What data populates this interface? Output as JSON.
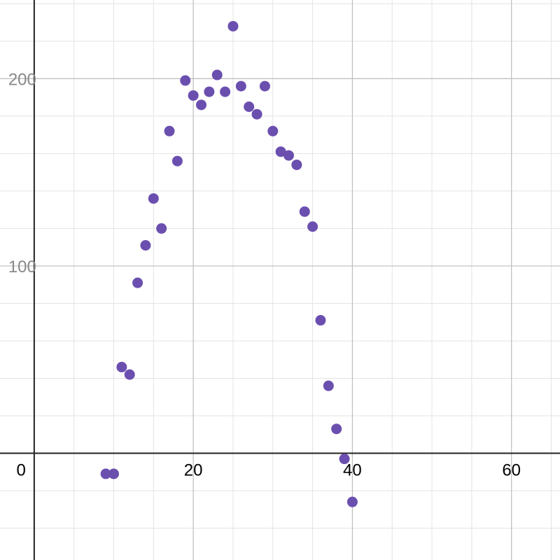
{
  "chart_data": {
    "type": "scatter",
    "title": "",
    "xlabel": "",
    "ylabel": "",
    "xlim": [
      -4.3,
      66.1
    ],
    "ylim": [
      -57,
      242
    ],
    "grid": true,
    "x_major_ticks": [
      0,
      20,
      40,
      60
    ],
    "x_minor_step": 5,
    "y_major_ticks": [
      100,
      200
    ],
    "y_minor_step": 20,
    "x_tick_labels": [
      "0",
      "20",
      "40",
      "60"
    ],
    "y_tick_labels": [
      "100",
      "200"
    ],
    "point_color": "#6B4FAF",
    "series": [
      {
        "points": [
          {
            "x": 9,
            "y": -11
          },
          {
            "x": 10,
            "y": -11
          },
          {
            "x": 11,
            "y": 46
          },
          {
            "x": 12,
            "y": 42
          },
          {
            "x": 13,
            "y": 91
          },
          {
            "x": 14,
            "y": 111
          },
          {
            "x": 15,
            "y": 136
          },
          {
            "x": 16,
            "y": 120
          },
          {
            "x": 17,
            "y": 172
          },
          {
            "x": 18,
            "y": 156
          },
          {
            "x": 19,
            "y": 199
          },
          {
            "x": 20,
            "y": 191
          },
          {
            "x": 21,
            "y": 186
          },
          {
            "x": 22,
            "y": 193
          },
          {
            "x": 23,
            "y": 202
          },
          {
            "x": 24,
            "y": 193
          },
          {
            "x": 25,
            "y": 228
          },
          {
            "x": 26,
            "y": 196
          },
          {
            "x": 27,
            "y": 185
          },
          {
            "x": 28,
            "y": 181
          },
          {
            "x": 29,
            "y": 196
          },
          {
            "x": 30,
            "y": 172
          },
          {
            "x": 31,
            "y": 161
          },
          {
            "x": 32,
            "y": 159
          },
          {
            "x": 33,
            "y": 154
          },
          {
            "x": 34,
            "y": 129
          },
          {
            "x": 35,
            "y": 121
          },
          {
            "x": 36,
            "y": 71
          },
          {
            "x": 37,
            "y": 36
          },
          {
            "x": 38,
            "y": 13
          },
          {
            "x": 39,
            "y": -3
          },
          {
            "x": 40,
            "y": -26
          }
        ]
      }
    ]
  }
}
